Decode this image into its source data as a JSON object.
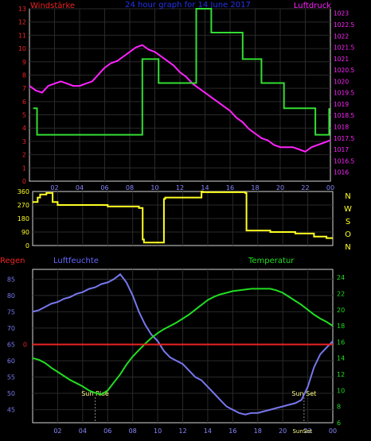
{
  "chart_data": [
    {
      "id": "wind_pressure",
      "type": "line",
      "title": "24 hour graph for 14 June 2017",
      "left_axis_label": "Windstärke",
      "right_axis_label": "Luftdruck",
      "x_ticks": [
        "02",
        "04",
        "06",
        "08",
        "10",
        "12",
        "14",
        "16",
        "18",
        "20",
        "22",
        "00"
      ],
      "left_ticks": [
        "0",
        "1",
        "2",
        "3",
        "4",
        "5",
        "6",
        "7",
        "8",
        "9",
        "10",
        "11",
        "12",
        "13"
      ],
      "right_ticks": [
        "1016",
        "1016.5",
        "1017",
        "1017.5",
        "1018",
        "1018.5",
        "1019",
        "1019.5",
        "1020",
        "1020.5",
        "1021",
        "1021.5",
        "1022",
        "1022.5",
        "1023"
      ],
      "left_ylim": [
        0,
        13
      ],
      "right_ylim": [
        1015.6,
        1023.2
      ],
      "series": [
        {
          "axis": "left",
          "color": "#33dd33",
          "step": true,
          "x": [
            0.3,
            0.6,
            0.6,
            9.0,
            9.0,
            10.3,
            10.3,
            13.3,
            13.3,
            14.5,
            14.5,
            17.0,
            17.0,
            18.5,
            18.5,
            20.3,
            20.3,
            22.8,
            22.8,
            23.7,
            23.7,
            23.9,
            23.9
          ],
          "values": [
            5.5,
            5.5,
            3.5,
            3.5,
            9.2,
            9.2,
            7.4,
            7.4,
            13.0,
            13.0,
            11.2,
            11.2,
            9.2,
            9.2,
            7.4,
            7.4,
            5.5,
            5.5,
            3.5,
            3.5,
            3.5,
            3.5,
            5.5
          ]
        },
        {
          "axis": "right",
          "color": "#ff22ff",
          "x": [
            0.0,
            0.5,
            1.0,
            1.5,
            2.0,
            2.5,
            3.0,
            3.5,
            4.0,
            4.5,
            5.0,
            5.5,
            6.0,
            6.5,
            7.0,
            7.5,
            8.0,
            8.5,
            9.0,
            9.5,
            10.0,
            10.5,
            11.0,
            11.5,
            12.0,
            12.5,
            13.0,
            13.5,
            14.0,
            14.5,
            15.0,
            15.5,
            16.0,
            16.5,
            17.0,
            17.5,
            18.0,
            18.5,
            19.0,
            19.5,
            20.0,
            20.5,
            21.0,
            21.5,
            22.0,
            22.5,
            23.0,
            23.5,
            24.0
          ],
          "values": [
            1019.8,
            1019.6,
            1019.5,
            1019.8,
            1019.9,
            1020.0,
            1019.9,
            1019.8,
            1019.8,
            1019.9,
            1020.0,
            1020.3,
            1020.6,
            1020.8,
            1020.9,
            1021.1,
            1021.3,
            1021.5,
            1021.6,
            1021.4,
            1021.3,
            1021.1,
            1020.9,
            1020.7,
            1020.4,
            1020.2,
            1019.9,
            1019.7,
            1019.5,
            1019.3,
            1019.1,
            1018.9,
            1018.7,
            1018.4,
            1018.2,
            1017.9,
            1017.7,
            1017.5,
            1017.4,
            1017.2,
            1017.1,
            1017.1,
            1017.1,
            1017.0,
            1016.9,
            1017.1,
            1017.2,
            1017.3,
            1017.4
          ]
        }
      ]
    },
    {
      "id": "wind_direction",
      "type": "line",
      "step": true,
      "left_ticks": [
        "0",
        "90",
        "180",
        "270",
        "360"
      ],
      "right_ticks": [
        "N",
        "W",
        "S",
        "O",
        "N"
      ],
      "ylim": [
        0,
        360
      ],
      "series": [
        {
          "color": "#ffff22",
          "x": [
            0.0,
            0.4,
            0.6,
            1.0,
            1.1,
            1.5,
            1.6,
            2.0,
            6.0,
            8.5,
            8.6,
            8.8,
            8.9,
            9.0,
            10.4,
            10.5,
            10.6,
            13.5,
            13.6,
            17.0,
            17.1,
            19.0,
            21.0,
            22.5,
            23.5,
            24.0
          ],
          "values": [
            290,
            320,
            340,
            340,
            350,
            350,
            290,
            270,
            260,
            250,
            250,
            40,
            20,
            20,
            20,
            310,
            320,
            360,
            355,
            350,
            100,
            90,
            80,
            60,
            50,
            50
          ]
        }
      ]
    },
    {
      "id": "humidity_temperature",
      "type": "line",
      "titles": [
        "Regen",
        "Luftfeuchte",
        "Temperatur"
      ],
      "x_ticks": [
        "02",
        "04",
        "06",
        "08",
        "10",
        "12",
        "14",
        "16",
        "18",
        "20",
        "22",
        "00"
      ],
      "left_ticks": [
        "45",
        "50",
        "55",
        "60",
        "65",
        "70",
        "75",
        "80",
        "85"
      ],
      "right_ticks": [
        "6",
        "8",
        "10",
        "12",
        "14",
        "16",
        "18",
        "20",
        "22",
        "24"
      ],
      "rain_tick": "0",
      "left_ylim": [
        41,
        88
      ],
      "right_ylim": [
        6,
        25
      ],
      "annotations": [
        "Sun Rise",
        "Sun Set",
        "SunSet"
      ],
      "annotation_hours": [
        5.0,
        21.7
      ],
      "series": [
        {
          "axis": "left",
          "color": "#7777ee",
          "x": [
            0.0,
            0.5,
            1.0,
            1.5,
            2.0,
            2.5,
            3.0,
            3.5,
            4.0,
            4.5,
            5.0,
            5.5,
            6.0,
            6.5,
            7.0,
            7.5,
            8.0,
            8.5,
            9.0,
            9.5,
            10.0,
            10.5,
            11.0,
            11.5,
            12.0,
            12.5,
            13.0,
            13.5,
            14.0,
            14.5,
            15.0,
            15.5,
            16.0,
            16.5,
            17.0,
            17.5,
            18.0,
            18.5,
            19.0,
            19.5,
            20.0,
            20.5,
            21.0,
            21.5,
            22.0,
            22.5,
            23.0,
            23.5,
            24.0
          ],
          "values": [
            75.0,
            75.5,
            76.5,
            77.5,
            78.0,
            79.0,
            79.5,
            80.5,
            81.0,
            82.0,
            82.5,
            83.5,
            84.0,
            85.0,
            86.5,
            84.0,
            80.0,
            75.0,
            71.0,
            68.0,
            66.0,
            63.0,
            61.0,
            60.0,
            59.0,
            57.0,
            55.0,
            54.0,
            52.0,
            50.0,
            48.0,
            46.0,
            45.0,
            44.0,
            43.5,
            44.0,
            44.0,
            44.5,
            45.0,
            45.5,
            46.0,
            46.5,
            47.0,
            48.0,
            52.0,
            58.0,
            62.0,
            64.0,
            66.0
          ]
        },
        {
          "axis": "right",
          "color": "#22dd22",
          "x": [
            0.0,
            0.5,
            1.0,
            1.5,
            2.0,
            2.5,
            3.0,
            3.5,
            4.0,
            4.5,
            5.0,
            5.5,
            6.0,
            6.5,
            7.0,
            7.5,
            8.0,
            8.5,
            9.0,
            9.5,
            10.0,
            10.5,
            11.0,
            11.5,
            12.0,
            12.5,
            13.0,
            13.5,
            14.0,
            14.5,
            15.0,
            15.5,
            16.0,
            16.5,
            17.0,
            17.5,
            18.0,
            18.5,
            19.0,
            19.5,
            20.0,
            20.5,
            21.0,
            21.5,
            22.0,
            22.5,
            23.0,
            23.5,
            24.0
          ],
          "values": [
            14.0,
            13.8,
            13.4,
            12.8,
            12.3,
            11.8,
            11.3,
            10.9,
            10.5,
            10.0,
            9.7,
            9.5,
            10.0,
            11.0,
            12.0,
            13.2,
            14.2,
            15.0,
            15.8,
            16.5,
            17.1,
            17.6,
            18.0,
            18.4,
            18.9,
            19.4,
            20.0,
            20.6,
            21.2,
            21.6,
            21.9,
            22.1,
            22.3,
            22.4,
            22.5,
            22.6,
            22.6,
            22.6,
            22.6,
            22.4,
            22.1,
            21.6,
            21.1,
            20.6,
            20.0,
            19.4,
            18.9,
            18.5,
            18.0
          ]
        },
        {
          "axis": "rain",
          "color": "#ee2222",
          "x": [
            0.0,
            24.0
          ],
          "values": [
            0,
            0
          ]
        }
      ]
    }
  ]
}
